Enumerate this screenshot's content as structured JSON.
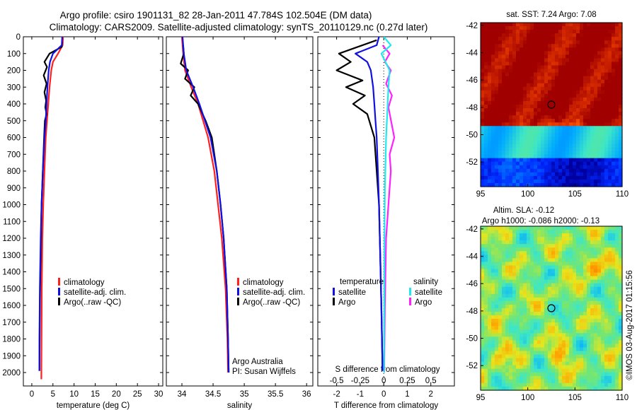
{
  "title": {
    "line1": "Argo profile: csiro 1901131_82 28-Jan-2011 47.784S 102.504E (DM data)",
    "line2": "Climatology: CARS2009. Satellite-adjusted climatology: synTS_20110129.nc (0.27d later)"
  },
  "credit": "©IMOS 03-Aug-2017 01:15:56",
  "colors": {
    "climatology": "#ff2020",
    "satellite": "#1010e0",
    "argo": "#000000",
    "sal_satellite": "#20e8f0",
    "sal_argo": "#ff20ff"
  },
  "chart_data": [
    {
      "type": "line",
      "xlabel": "temperature (deg C)",
      "xlim": [
        -2,
        31
      ],
      "xticks": [
        0,
        5,
        10,
        15,
        20,
        25,
        30
      ],
      "xtick_labels": [
        "0",
        "5",
        "10",
        "15",
        "20",
        "25",
        "30"
      ],
      "ylim": [
        0,
        2080
      ],
      "yticks": [
        0,
        100,
        200,
        300,
        400,
        500,
        600,
        700,
        800,
        900,
        1000,
        1100,
        1200,
        1300,
        1400,
        1500,
        1600,
        1700,
        1800,
        1900,
        2000
      ],
      "ytick_labels": [
        "0",
        "100",
        "200",
        "300",
        "400",
        "500",
        "600",
        "700",
        "800",
        "900",
        "1000",
        "1100",
        "1200",
        "1300",
        "1400",
        "1500",
        "1600",
        "1700",
        "1800",
        "1900",
        "2000"
      ],
      "legend": [
        "climatology",
        "satellite-adj. clim.",
        "Argo(..raw -QC)"
      ],
      "legend_position": "center",
      "series": [
        {
          "name": "climatology",
          "color_key": "climatology",
          "x": [
            7.4,
            7.3,
            6.2,
            5.0,
            4.6,
            4.2,
            3.9,
            3.6,
            3.3,
            3.0,
            2.7,
            2.5,
            2.35,
            2.3,
            2.25
          ],
          "y": [
            0,
            50,
            100,
            150,
            200,
            300,
            400,
            500,
            600,
            800,
            1000,
            1200,
            1500,
            1800,
            2040
          ]
        },
        {
          "name": "satellite-adj. clim.",
          "color_key": "satellite",
          "x": [
            7.2,
            7.1,
            5.0,
            4.3,
            4.0,
            3.7,
            3.5,
            3.3,
            3.0,
            2.6,
            2.3,
            2.1,
            1.9,
            1.8,
            1.8
          ],
          "y": [
            0,
            50,
            100,
            150,
            200,
            300,
            400,
            500,
            600,
            800,
            1000,
            1200,
            1500,
            1800,
            1990
          ]
        },
        {
          "name": "Argo(..raw -QC)",
          "color_key": "argo",
          "x": [
            7.2,
            7.1,
            4.2,
            3.0,
            3.6,
            2.8,
            3.5,
            3.0,
            3.4,
            3.2,
            3.5,
            3.1,
            2.9,
            2.6,
            2.3,
            2.1,
            1.9,
            1.8
          ],
          "y": [
            30,
            60,
            100,
            150,
            180,
            230,
            280,
            330,
            380,
            420,
            460,
            500,
            600,
            800,
            1000,
            1300,
            1600,
            1990
          ]
        }
      ]
    },
    {
      "type": "line",
      "xlabel": "salinity",
      "xlim": [
        33.75,
        36.1
      ],
      "xticks": [
        34,
        34.5,
        35,
        35.5,
        36
      ],
      "xtick_labels": [
        "34",
        "34.5",
        "35",
        "35.5",
        "36"
      ],
      "ylim": [
        0,
        2080
      ],
      "legend": [
        "climatology",
        "satellite-adj. clim.",
        "Argo(..raw -QC)"
      ],
      "legend_position": "center",
      "annotation": [
        "Argo Australia",
        "PI: Susan Wijffels"
      ],
      "series": [
        {
          "name": "climatology",
          "color_key": "climatology",
          "x": [
            34.0,
            34.02,
            34.05,
            34.15,
            34.26,
            34.34,
            34.42,
            34.52,
            34.58,
            34.64,
            34.7,
            34.73,
            34.74
          ],
          "y": [
            0,
            100,
            200,
            300,
            400,
            500,
            600,
            800,
            1000,
            1200,
            1500,
            1800,
            2000
          ]
        },
        {
          "name": "satellite-adj. clim.",
          "color_key": "satellite",
          "x": [
            34.01,
            34.03,
            34.07,
            34.18,
            34.28,
            34.37,
            34.46,
            34.56,
            34.62,
            34.67,
            34.72,
            34.74,
            34.75
          ],
          "y": [
            0,
            100,
            200,
            300,
            400,
            500,
            600,
            800,
            1000,
            1200,
            1500,
            1800,
            2000
          ]
        },
        {
          "name": "Argo(..raw -QC)",
          "color_key": "argo",
          "x": [
            34.02,
            34.03,
            33.98,
            34.1,
            34.05,
            34.2,
            34.14,
            34.26,
            34.38,
            34.48,
            34.56,
            34.62,
            34.67,
            34.72,
            34.74,
            34.75
          ],
          "y": [
            50,
            100,
            160,
            200,
            250,
            300,
            350,
            400,
            500,
            600,
            800,
            1000,
            1200,
            1500,
            1800,
            2000
          ]
        }
      ]
    },
    {
      "type": "line",
      "xlabel": "T difference from climatology",
      "xlim": [
        -2.8,
        3.0
      ],
      "xticks": [
        -2,
        -1,
        0,
        1,
        2
      ],
      "xtick_labels": [
        "-2",
        "-1",
        "0",
        "1",
        "2"
      ],
      "top_xlabel": "S difference from climatology",
      "s_xticks": [
        -0.5,
        -0.25,
        0,
        0.25,
        0.5
      ],
      "s_xtick_labels": [
        "-0.5",
        "-0.25",
        "0",
        "0.25",
        "0.5"
      ],
      "s_scale": 4,
      "ylim": [
        0,
        2080
      ],
      "legend_groups": [
        {
          "title": "temperature",
          "items": [
            "satellite",
            "Argo"
          ]
        },
        {
          "title": "salinity",
          "items": [
            "satellite",
            "Argo"
          ]
        }
      ],
      "legend_position": "center",
      "series": [
        {
          "name": "satellite",
          "group": "temperature",
          "color_key": "satellite",
          "x": [
            -0.2,
            -0.3,
            -1.2,
            -0.7,
            -0.55,
            -0.45,
            -0.4,
            -0.35,
            -0.3,
            -0.25,
            -0.2,
            -0.15,
            -0.1,
            -0.05
          ],
          "y": [
            0,
            50,
            100,
            150,
            200,
            300,
            400,
            500,
            600,
            800,
            1000,
            1300,
            1600,
            1990
          ]
        },
        {
          "name": "Argo",
          "group": "temperature",
          "color_key": "argo",
          "x": [
            -0.3,
            -1.9,
            -1.4,
            -2.0,
            -0.9,
            -1.6,
            -0.8,
            -1.3,
            -0.7,
            -0.4,
            -0.3,
            -0.2,
            -0.15,
            -0.1,
            -0.05
          ],
          "y": [
            20,
            100,
            150,
            200,
            260,
            300,
            350,
            400,
            460,
            600,
            800,
            1000,
            1300,
            1600,
            1990
          ]
        },
        {
          "name": "satellite",
          "group": "salinity",
          "color_key": "sal_satellite",
          "x": [
            0.0,
            0.3,
            -0.1,
            0.25,
            0.2,
            0.15,
            0.1,
            0.05,
            0.03,
            0.02,
            0.01
          ],
          "y": [
            0,
            50,
            100,
            200,
            300,
            450,
            600,
            900,
            1200,
            1600,
            2000
          ]
        },
        {
          "name": "Argo",
          "group": "salinity",
          "color_key": "sal_argo",
          "x": [
            -0.05,
            0.25,
            0.05,
            0.3,
            0.1,
            0.35,
            0.2,
            0.45,
            0.25,
            0.3,
            0.2,
            0.1,
            0.05,
            0.02
          ],
          "y": [
            50,
            100,
            150,
            200,
            280,
            350,
            420,
            600,
            700,
            800,
            1000,
            1200,
            1600,
            2000
          ]
        }
      ]
    },
    {
      "type": "heatmap",
      "title": "sat. SST: 7.24 Argo: 7.08",
      "xlim": [
        95,
        110
      ],
      "ylim": [
        -53.8,
        -41.8
      ],
      "xticks": [
        95,
        100,
        105,
        110
      ],
      "xtick_labels": [
        "95",
        "100",
        "105",
        "110"
      ],
      "yticks": [
        -42,
        -44,
        -46,
        -48,
        -50,
        -52
      ],
      "ytick_labels": [
        "-42",
        "-44",
        "-46",
        "-48",
        "-50",
        "-52"
      ],
      "marker": {
        "lon": 102.5,
        "lat": -47.8
      }
    },
    {
      "type": "heatmap",
      "title": "Altim. SLA: -0.12",
      "subtitle": "Argo h1000: -0.086 h2000: -0.13",
      "xlim": [
        95,
        110
      ],
      "ylim": [
        -53.8,
        -41.8
      ],
      "xticks": [
        95,
        100,
        105,
        110
      ],
      "xtick_labels": [
        "95",
        "100",
        "105",
        "110"
      ],
      "yticks": [
        -42,
        -44,
        -46,
        -48,
        -50,
        -52
      ],
      "ytick_labels": [
        "-42",
        "-44",
        "-46",
        "-48",
        "-50",
        "-52"
      ],
      "marker": {
        "lon": 102.5,
        "lat": -47.8
      }
    }
  ]
}
